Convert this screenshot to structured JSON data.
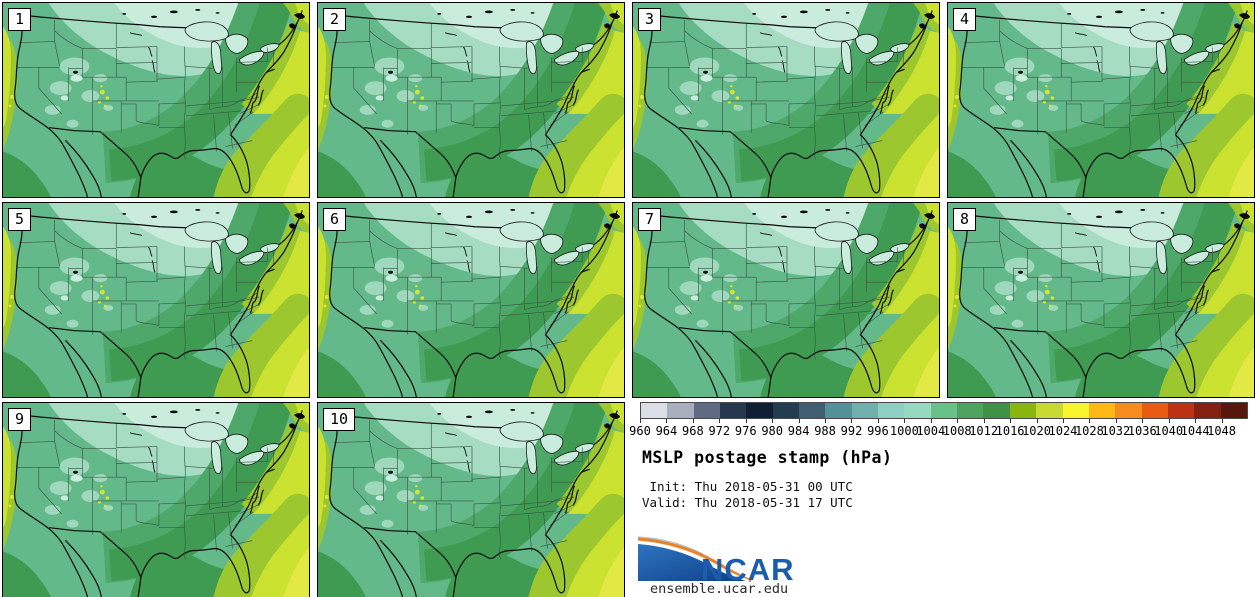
{
  "panels": [
    {
      "label": "1"
    },
    {
      "label": "2"
    },
    {
      "label": "3"
    },
    {
      "label": "4"
    },
    {
      "label": "5"
    },
    {
      "label": "6"
    },
    {
      "label": "7"
    },
    {
      "label": "8"
    },
    {
      "label": "9"
    },
    {
      "label": "10"
    }
  ],
  "legend": {
    "init_line": " Init: Thu 2018-05-31 00 UTC",
    "valid_line": "Valid: Thu 2018-05-31 17 UTC"
  },
  "branding": {
    "logo_text": "NCAR",
    "site_url": "ensemble.ucar.edu",
    "logo_blue": "#1a5dad",
    "logo_orange": "#e8832a"
  },
  "chart_data": {
    "type": "heatmap",
    "title": "MSLP postage stamp (hPa)",
    "field": "Mean sea level pressure",
    "units": "hPa",
    "region": "CONUS",
    "init_time": "Thu 2018-05-31 00 UTC",
    "valid_time": "Thu 2018-05-31 17 UTC",
    "ensemble_members": [
      "1",
      "2",
      "3",
      "4",
      "5",
      "6",
      "7",
      "8",
      "9",
      "10"
    ],
    "colorbar": {
      "min": 960,
      "interval": 4,
      "tick_labels": [
        "960",
        "964",
        "968",
        "972",
        "976",
        "980",
        "984",
        "988",
        "992",
        "996",
        "1000",
        "1004",
        "1008",
        "1012",
        "1016",
        "1020",
        "1024",
        "1028",
        "1032",
        "1036",
        "1040",
        "1044",
        "1048"
      ],
      "segment_colors": [
        "#dbdfe5",
        "#a8aebc",
        "#5f6b80",
        "#27374e",
        "#111f35",
        "#233c50",
        "#3d5f70",
        "#549098",
        "#6fb0ad",
        "#8ecfc1",
        "#96d8c0",
        "#68c189",
        "#4da35c",
        "#3f9145",
        "#88b510",
        "#c6d831",
        "#f8f32b",
        "#fdb913",
        "#f68b1f",
        "#e85c12",
        "#bb3314",
        "#84200f",
        "#57170c"
      ]
    },
    "map_fill_palette": {
      "pale_cyan_low": "#c9ecdd",
      "light_green": "#a6dcc2",
      "base_green": "#63b989",
      "mid_dark_green": "#4ea86a",
      "dark_green": "#3f9b51",
      "yellow_green": "#9cc72e",
      "chartreuse": "#cbe231",
      "bright_yellow": "#e2e945"
    }
  }
}
